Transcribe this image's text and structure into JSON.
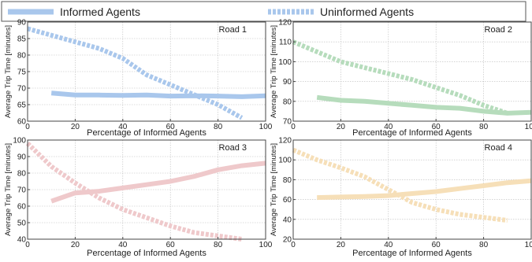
{
  "legend": {
    "items": [
      {
        "label": "Informed Agents",
        "style": "solid"
      },
      {
        "label": "Uninformed Agents",
        "style": "dashed"
      }
    ]
  },
  "chart_data": [
    {
      "type": "line",
      "title": "Road 1",
      "xlabel": "Percentage of Informed Agents",
      "ylabel": "Average Trip Time [minutes]",
      "xlim": [
        0,
        100
      ],
      "ylim": [
        60,
        90
      ],
      "xticks": [
        0,
        20,
        40,
        60,
        80,
        100
      ],
      "yticks": [
        60,
        65,
        70,
        75,
        80,
        85,
        90
      ],
      "color": "#a9c7ec",
      "grid": true,
      "series": [
        {
          "name": "Informed Agents",
          "style": "solid",
          "x": [
            10,
            20,
            30,
            40,
            50,
            60,
            70,
            80,
            90,
            100
          ],
          "y": [
            68.5,
            67.9,
            67.9,
            67.8,
            67.9,
            67.6,
            67.7,
            67.6,
            67.4,
            67.7
          ]
        },
        {
          "name": "Uninformed Agents",
          "style": "dashed",
          "x": [
            0,
            10,
            20,
            30,
            40,
            50,
            60,
            70,
            80,
            90
          ],
          "y": [
            88.0,
            86.0,
            84.0,
            82.0,
            79.0,
            74.0,
            71.0,
            68.0,
            65.0,
            61.0
          ]
        }
      ]
    },
    {
      "type": "line",
      "title": "Road 2",
      "xlabel": "Percentage of Informed Agents",
      "ylabel": "Average Trip Time [minutes]",
      "xlim": [
        0,
        100
      ],
      "ylim": [
        70,
        120
      ],
      "xticks": [
        0,
        20,
        40,
        60,
        80,
        100
      ],
      "yticks": [
        70,
        80,
        90,
        100,
        110,
        120
      ],
      "color": "#b6dcbc",
      "grid": true,
      "series": [
        {
          "name": "Informed Agents",
          "style": "solid",
          "x": [
            10,
            20,
            30,
            40,
            50,
            60,
            70,
            80,
            90,
            100
          ],
          "y": [
            82.0,
            80.5,
            80.0,
            79.0,
            78.0,
            77.0,
            76.5,
            75.0,
            74.0,
            74.5
          ]
        },
        {
          "name": "Uninformed Agents",
          "style": "dashed",
          "x": [
            0,
            10,
            20,
            30,
            40,
            50,
            60,
            70,
            80,
            90
          ],
          "y": [
            110.0,
            105.0,
            100.0,
            97.0,
            94.0,
            91.0,
            87.0,
            83.0,
            78.0,
            74.0
          ]
        }
      ]
    },
    {
      "type": "line",
      "title": "Road 3",
      "xlabel": "Percentage of Informed Agents",
      "ylabel": "Average Trip Time [minutes]",
      "xlim": [
        0,
        100
      ],
      "ylim": [
        40,
        100
      ],
      "xticks": [
        0,
        20,
        40,
        60,
        80,
        100
      ],
      "yticks": [
        40,
        50,
        60,
        70,
        80,
        90,
        100
      ],
      "color": "#efc9cb",
      "grid": true,
      "series": [
        {
          "name": "Informed Agents",
          "style": "solid",
          "x": [
            10,
            20,
            30,
            40,
            50,
            60,
            70,
            80,
            90,
            100
          ],
          "y": [
            63.0,
            68.0,
            69.0,
            71.0,
            73.0,
            75.0,
            78.0,
            82.0,
            84.5,
            86.0
          ]
        },
        {
          "name": "Uninformed Agents",
          "style": "dashed",
          "x": [
            0,
            10,
            20,
            30,
            40,
            50,
            60,
            70,
            80,
            90
          ],
          "y": [
            98.0,
            84.0,
            74.0,
            65.0,
            58.0,
            53.0,
            48.0,
            44.0,
            42.0,
            40.0
          ]
        }
      ]
    },
    {
      "type": "line",
      "title": "Road 4",
      "xlabel": "Percentage of Informed Agents",
      "ylabel": "Average Trip Time [minutes]",
      "xlim": [
        0,
        100
      ],
      "ylim": [
        20,
        120
      ],
      "xticks": [
        0,
        20,
        40,
        60,
        80,
        100
      ],
      "yticks": [
        20,
        40,
        60,
        80,
        100,
        120
      ],
      "color": "#f6dfb8",
      "grid": true,
      "series": [
        {
          "name": "Informed Agents",
          "style": "solid",
          "x": [
            10,
            20,
            30,
            40,
            50,
            60,
            70,
            80,
            90,
            100
          ],
          "y": [
            62.0,
            62.5,
            63.0,
            64.0,
            66.0,
            68.0,
            71.0,
            74.0,
            77.0,
            79.0
          ]
        },
        {
          "name": "Uninformed Agents",
          "style": "dashed",
          "x": [
            0,
            10,
            20,
            30,
            40,
            50,
            60,
            70,
            80,
            90
          ],
          "y": [
            110.0,
            100.0,
            92.0,
            83.0,
            70.0,
            57.0,
            50.0,
            45.0,
            42.0,
            39.0
          ]
        }
      ]
    }
  ]
}
